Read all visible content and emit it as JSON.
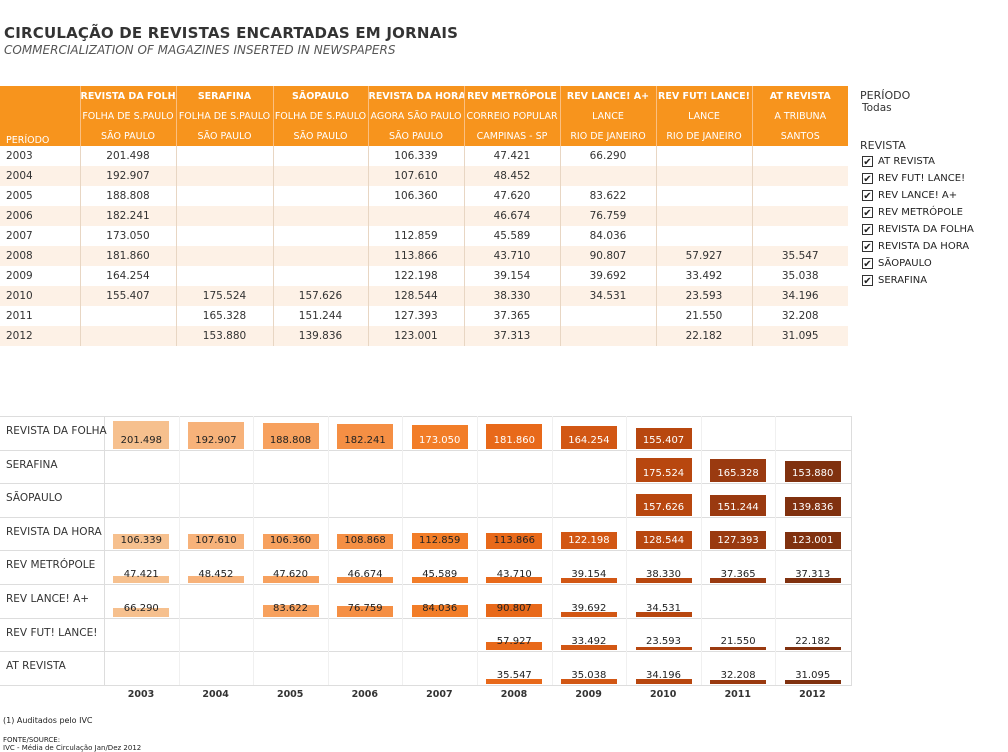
{
  "title": "CIRCULAÇÃO DE REVISTAS ENCARTADAS EM JORNAIS",
  "subtitle": "COMMERCIALIZATION OF MAGAZINES INSERTED IN NEWSPAPERS",
  "table": {
    "period_header": "PERÍODO",
    "columns": [
      {
        "name": "REVISTA DA FOLHA",
        "paper": "FOLHA DE S.PAULO",
        "city": "SÃO PAULO"
      },
      {
        "name": "SERAFINA",
        "paper": "FOLHA DE S.PAULO",
        "city": "SÃO PAULO"
      },
      {
        "name": "SÃOPAULO",
        "paper": "FOLHA DE S.PAULO",
        "city": "SÃO PAULO"
      },
      {
        "name": "REVISTA DA HORA",
        "paper": "AGORA SÃO PAULO",
        "city": "SÃO PAULO"
      },
      {
        "name": "REV METRÓPOLE",
        "paper": "CORREIO POPULAR",
        "city": "CAMPINAS - SP"
      },
      {
        "name": "REV LANCE! A+",
        "paper": "LANCE",
        "city": "RIO DE JANEIRO"
      },
      {
        "name": "REV FUT! LANCE!",
        "paper": "LANCE",
        "city": "RIO DE JANEIRO"
      },
      {
        "name": "AT REVISTA",
        "paper": "A TRIBUNA",
        "city": "SANTOS"
      }
    ],
    "rows": [
      {
        "year": "2003",
        "values": [
          "201.498",
          "",
          "",
          "106.339",
          "47.421",
          "66.290",
          "",
          ""
        ]
      },
      {
        "year": "2004",
        "values": [
          "192.907",
          "",
          "",
          "107.610",
          "48.452",
          "",
          "",
          ""
        ]
      },
      {
        "year": "2005",
        "values": [
          "188.808",
          "",
          "",
          "106.360",
          "47.620",
          "83.622",
          "",
          ""
        ]
      },
      {
        "year": "2006",
        "values": [
          "182.241",
          "",
          "",
          "",
          "46.674",
          "76.759",
          "",
          ""
        ]
      },
      {
        "year": "2007",
        "values": [
          "173.050",
          "",
          "",
          "112.859",
          "45.589",
          "84.036",
          "",
          ""
        ]
      },
      {
        "year": "2008",
        "values": [
          "181.860",
          "",
          "",
          "113.866",
          "43.710",
          "90.807",
          "57.927",
          "35.547"
        ]
      },
      {
        "year": "2009",
        "values": [
          "164.254",
          "",
          "",
          "122.198",
          "39.154",
          "39.692",
          "33.492",
          "35.038"
        ]
      },
      {
        "year": "2010",
        "values": [
          "155.407",
          "175.524",
          "157.626",
          "128.544",
          "38.330",
          "34.531",
          "23.593",
          "34.196"
        ]
      },
      {
        "year": "2011",
        "values": [
          "",
          "165.328",
          "151.244",
          "127.393",
          "37.365",
          "",
          "21.550",
          "32.208"
        ]
      },
      {
        "year": "2012",
        "values": [
          "",
          "153.880",
          "139.836",
          "123.001",
          "37.313",
          "",
          "22.182",
          "31.095"
        ]
      }
    ]
  },
  "filters": {
    "period_label": "PERÍODO",
    "period_value": "Todas",
    "revista_label": "REVISTA",
    "items": [
      {
        "label": "AT REVISTA",
        "checked": true
      },
      {
        "label": "REV FUT! LANCE!",
        "checked": true
      },
      {
        "label": "REV LANCE! A+",
        "checked": true
      },
      {
        "label": "REV METRÓPOLE",
        "checked": true
      },
      {
        "label": "REVISTA DA FOLHA",
        "checked": true
      },
      {
        "label": "REVISTA DA HORA",
        "checked": true
      },
      {
        "label": "SÃOPAULO",
        "checked": true
      },
      {
        "label": "SERAFINA",
        "checked": true
      }
    ],
    "check_glyph": "✔"
  },
  "chart_data": {
    "type": "bar",
    "layout_note_words": "small multiples, one row per magazine",
    "categories": [
      "2003",
      "2004",
      "2005",
      "2006",
      "2007",
      "2008",
      "2009",
      "2010",
      "2011",
      "2012"
    ],
    "row_max": 210000,
    "series": [
      {
        "name": "REVISTA DA FOLHA",
        "values": [
          201498,
          192907,
          188808,
          182241,
          173050,
          181860,
          164254,
          155407,
          null,
          null
        ]
      },
      {
        "name": "SERAFINA",
        "values": [
          null,
          null,
          null,
          null,
          null,
          null,
          null,
          175524,
          165328,
          153880
        ]
      },
      {
        "name": "SÃOPAULO",
        "values": [
          null,
          null,
          null,
          null,
          null,
          null,
          null,
          157626,
          151244,
          139836
        ]
      },
      {
        "name": "REVISTA DA HORA",
        "values": [
          106339,
          107610,
          106360,
          108868,
          112859,
          113866,
          122198,
          128544,
          127393,
          123001
        ]
      },
      {
        "name": "REV METRÓPOLE",
        "values": [
          47421,
          48452,
          47620,
          46674,
          45589,
          43710,
          39154,
          38330,
          37365,
          37313
        ]
      },
      {
        "name": "REV LANCE! A+",
        "values": [
          66290,
          null,
          83622,
          76759,
          84036,
          90807,
          39692,
          34531,
          null,
          null
        ]
      },
      {
        "name": "REV FUT! LANCE!",
        "values": [
          null,
          null,
          null,
          null,
          null,
          57927,
          33492,
          23593,
          21550,
          22182
        ]
      },
      {
        "name": "AT REVISTA",
        "values": [
          null,
          null,
          null,
          null,
          null,
          35547,
          35038,
          34196,
          32208,
          31095
        ]
      }
    ],
    "year_colors": [
      "#f6c08e",
      "#f7b27a",
      "#f7a15e",
      "#f58f44",
      "#f27d28",
      "#e8691a",
      "#d25714",
      "#b8470f",
      "#9a3a10",
      "#80310f"
    ]
  },
  "footnote": "(1) Auditados pelo IVC",
  "source_label": "FONTE/SOURCE:",
  "source_text": "IVC - Média de Circulação Jan/Dez 2012"
}
